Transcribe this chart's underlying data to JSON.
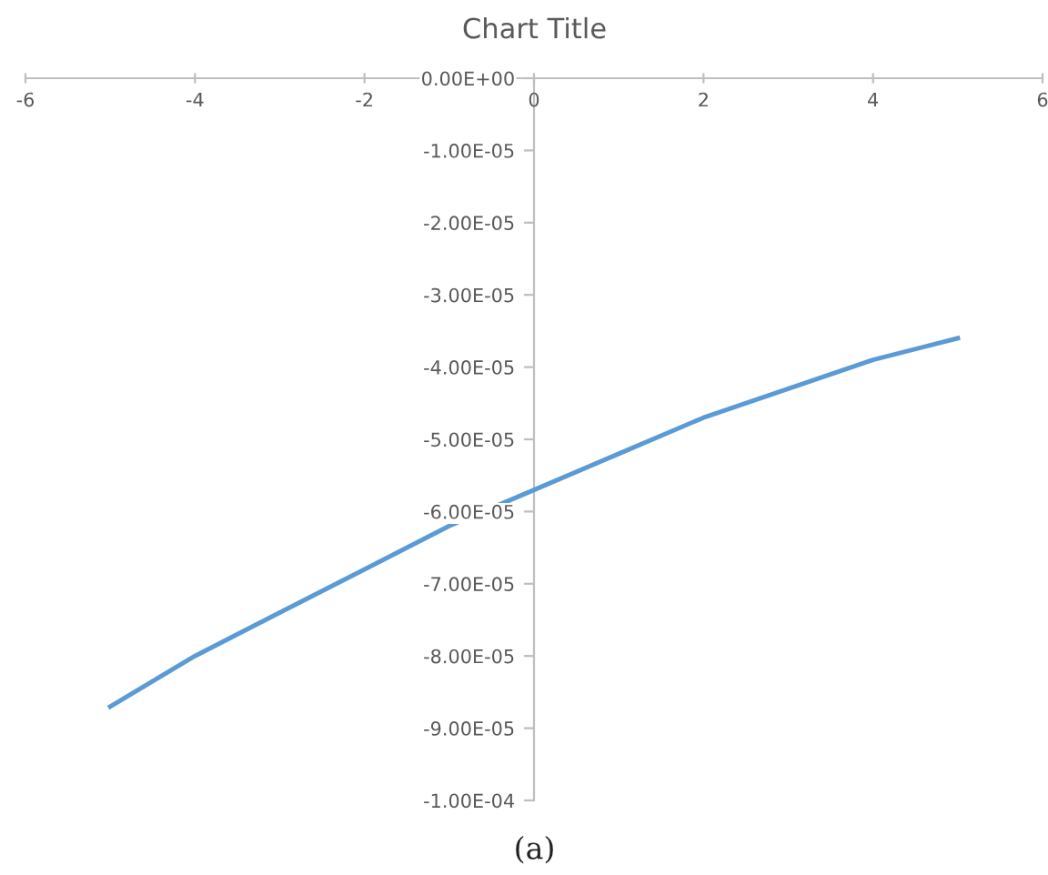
{
  "chart_data": {
    "type": "line",
    "title": "Chart Title",
    "x": [
      -5,
      -4,
      -3,
      -2,
      -1,
      0,
      1,
      2,
      3,
      4,
      5
    ],
    "series": [
      {
        "color": "#5b9bd5",
        "values": [
          -8.7e-05,
          -8e-05,
          -7.4e-05,
          -6.8e-05,
          -6.2e-05,
          -5.7e-05,
          -5.2e-05,
          -4.7e-05,
          -4.3e-05,
          -3.9e-05,
          -3.6e-05
        ]
      }
    ],
    "xlim": [
      -6,
      6
    ],
    "xticks": [
      -6,
      -4,
      -2,
      0,
      2,
      4,
      6
    ],
    "ylim": [
      -0.0001,
      0
    ],
    "yticks": [
      {
        "value": 0,
        "label": "0.00E+00"
      },
      {
        "value": -1e-05,
        "label": "-1.00E-05"
      },
      {
        "value": -2e-05,
        "label": "-2.00E-05"
      },
      {
        "value": -3e-05,
        "label": "-3.00E-05"
      },
      {
        "value": -4e-05,
        "label": "-4.00E-05"
      },
      {
        "value": -5e-05,
        "label": "-5.00E-05"
      },
      {
        "value": -6e-05,
        "label": "-6.00E-05"
      },
      {
        "value": -7e-05,
        "label": "-7.00E-05"
      },
      {
        "value": -8e-05,
        "label": "-8.00E-05"
      },
      {
        "value": -9e-05,
        "label": "-9.00E-05"
      },
      {
        "value": -0.0001,
        "label": "-1.00E-04"
      }
    ],
    "annotations": [
      "(a)"
    ],
    "grid": false,
    "legend": false,
    "marker": "none",
    "line_style": "solid"
  }
}
